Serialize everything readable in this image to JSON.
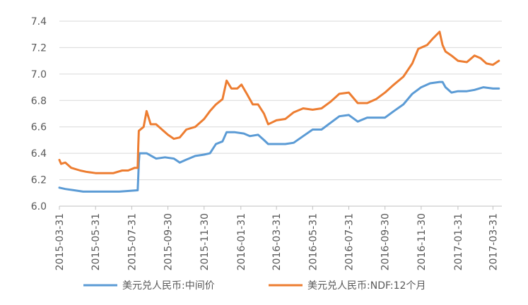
{
  "chart_data": {
    "type": "line",
    "title": "",
    "xlabel": "",
    "ylabel": "",
    "ylim": [
      6.0,
      7.4
    ],
    "yticks": [
      6.0,
      6.2,
      6.4,
      6.6,
      6.8,
      7.0,
      7.2,
      7.4
    ],
    "ytick_labels": [
      "6.0",
      "6.2",
      "6.4",
      "6.6",
      "6.8",
      "7.0",
      "7.2",
      "7.4"
    ],
    "xlim": [
      "2015-03-31",
      "2017-04-15"
    ],
    "xticks": [
      "2015-03-31",
      "2015-05-31",
      "2015-07-31",
      "2015-09-30",
      "2015-11-30",
      "2016-01-31",
      "2016-03-31",
      "2016-05-31",
      "2016-07-31",
      "2016-09-30",
      "2016-11-30",
      "2017-01-31",
      "2017-03-31"
    ],
    "grid": "horizontal",
    "legend": "bottom",
    "series": [
      {
        "name": "美元兑人民币:中间价",
        "color": "#5B9BD5",
        "points": [
          [
            "2015-03-31",
            6.14
          ],
          [
            "2015-04-10",
            6.13
          ],
          [
            "2015-04-25",
            6.12
          ],
          [
            "2015-05-10",
            6.11
          ],
          [
            "2015-05-31",
            6.11
          ],
          [
            "2015-06-20",
            6.11
          ],
          [
            "2015-07-10",
            6.11
          ],
          [
            "2015-08-10",
            6.12
          ],
          [
            "2015-08-11",
            6.22
          ],
          [
            "2015-08-12",
            6.33
          ],
          [
            "2015-08-13",
            6.4
          ],
          [
            "2015-08-25",
            6.4
          ],
          [
            "2015-09-10",
            6.36
          ],
          [
            "2015-09-25",
            6.37
          ],
          [
            "2015-10-10",
            6.36
          ],
          [
            "2015-10-20",
            6.33
          ],
          [
            "2015-10-30",
            6.35
          ],
          [
            "2015-11-15",
            6.38
          ],
          [
            "2015-11-30",
            6.39
          ],
          [
            "2015-12-10",
            6.4
          ],
          [
            "2015-12-20",
            6.47
          ],
          [
            "2015-12-31",
            6.49
          ],
          [
            "2016-01-07",
            6.56
          ],
          [
            "2016-01-20",
            6.56
          ],
          [
            "2016-02-05",
            6.55
          ],
          [
            "2016-02-15",
            6.53
          ],
          [
            "2016-02-29",
            6.54
          ],
          [
            "2016-03-10",
            6.5
          ],
          [
            "2016-03-17",
            6.47
          ],
          [
            "2016-03-31",
            6.47
          ],
          [
            "2016-04-15",
            6.47
          ],
          [
            "2016-04-29",
            6.48
          ],
          [
            "2016-05-15",
            6.53
          ],
          [
            "2016-05-31",
            6.58
          ],
          [
            "2016-06-15",
            6.58
          ],
          [
            "2016-06-30",
            6.63
          ],
          [
            "2016-07-15",
            6.68
          ],
          [
            "2016-07-31",
            6.69
          ],
          [
            "2016-08-15",
            6.64
          ],
          [
            "2016-08-31",
            6.67
          ],
          [
            "2016-09-15",
            6.67
          ],
          [
            "2016-09-30",
            6.67
          ],
          [
            "2016-10-15",
            6.72
          ],
          [
            "2016-10-31",
            6.77
          ],
          [
            "2016-11-15",
            6.85
          ],
          [
            "2016-11-30",
            6.9
          ],
          [
            "2016-12-15",
            6.93
          ],
          [
            "2016-12-31",
            6.94
          ],
          [
            "2017-01-05",
            6.94
          ],
          [
            "2017-01-10",
            6.9
          ],
          [
            "2017-01-20",
            6.86
          ],
          [
            "2017-01-31",
            6.87
          ],
          [
            "2017-02-15",
            6.87
          ],
          [
            "2017-02-28",
            6.88
          ],
          [
            "2017-03-15",
            6.9
          ],
          [
            "2017-03-31",
            6.89
          ],
          [
            "2017-04-10",
            6.89
          ]
        ]
      },
      {
        "name": "美元兑人民币:NDF:12个月",
        "color": "#ED7D31",
        "points": [
          [
            "2015-03-31",
            6.35
          ],
          [
            "2015-04-03",
            6.32
          ],
          [
            "2015-04-10",
            6.33
          ],
          [
            "2015-04-20",
            6.29
          ],
          [
            "2015-05-05",
            6.27
          ],
          [
            "2015-05-15",
            6.26
          ],
          [
            "2015-05-31",
            6.25
          ],
          [
            "2015-06-15",
            6.25
          ],
          [
            "2015-06-30",
            6.25
          ],
          [
            "2015-07-15",
            6.27
          ],
          [
            "2015-07-25",
            6.27
          ],
          [
            "2015-08-05",
            6.29
          ],
          [
            "2015-08-10",
            6.29
          ],
          [
            "2015-08-11",
            6.45
          ],
          [
            "2015-08-12",
            6.57
          ],
          [
            "2015-08-20",
            6.6
          ],
          [
            "2015-08-25",
            6.72
          ],
          [
            "2015-09-01",
            6.62
          ],
          [
            "2015-09-10",
            6.62
          ],
          [
            "2015-09-20",
            6.58
          ],
          [
            "2015-09-30",
            6.54
          ],
          [
            "2015-10-10",
            6.51
          ],
          [
            "2015-10-20",
            6.52
          ],
          [
            "2015-10-31",
            6.58
          ],
          [
            "2015-11-15",
            6.6
          ],
          [
            "2015-11-30",
            6.66
          ],
          [
            "2015-12-10",
            6.72
          ],
          [
            "2015-12-20",
            6.77
          ],
          [
            "2015-12-31",
            6.81
          ],
          [
            "2016-01-07",
            6.95
          ],
          [
            "2016-01-15",
            6.89
          ],
          [
            "2016-01-25",
            6.89
          ],
          [
            "2016-02-01",
            6.92
          ],
          [
            "2016-02-10",
            6.85
          ],
          [
            "2016-02-20",
            6.77
          ],
          [
            "2016-02-29",
            6.77
          ],
          [
            "2016-03-10",
            6.7
          ],
          [
            "2016-03-17",
            6.62
          ],
          [
            "2016-03-31",
            6.65
          ],
          [
            "2016-04-15",
            6.66
          ],
          [
            "2016-04-29",
            6.71
          ],
          [
            "2016-05-15",
            6.74
          ],
          [
            "2016-05-31",
            6.73
          ],
          [
            "2016-06-15",
            6.74
          ],
          [
            "2016-06-30",
            6.79
          ],
          [
            "2016-07-15",
            6.85
          ],
          [
            "2016-07-31",
            6.86
          ],
          [
            "2016-08-15",
            6.78
          ],
          [
            "2016-08-31",
            6.78
          ],
          [
            "2016-09-15",
            6.81
          ],
          [
            "2016-09-30",
            6.86
          ],
          [
            "2016-10-15",
            6.92
          ],
          [
            "2016-10-31",
            6.98
          ],
          [
            "2016-11-15",
            7.08
          ],
          [
            "2016-11-25",
            7.19
          ],
          [
            "2016-12-10",
            7.22
          ],
          [
            "2016-12-20",
            7.27
          ],
          [
            "2016-12-31",
            7.32
          ],
          [
            "2017-01-05",
            7.22
          ],
          [
            "2017-01-10",
            7.17
          ],
          [
            "2017-01-20",
            7.14
          ],
          [
            "2017-01-31",
            7.1
          ],
          [
            "2017-02-15",
            7.09
          ],
          [
            "2017-02-28",
            7.14
          ],
          [
            "2017-03-10",
            7.12
          ],
          [
            "2017-03-20",
            7.08
          ],
          [
            "2017-03-31",
            7.07
          ],
          [
            "2017-04-10",
            7.1
          ]
        ]
      }
    ]
  }
}
